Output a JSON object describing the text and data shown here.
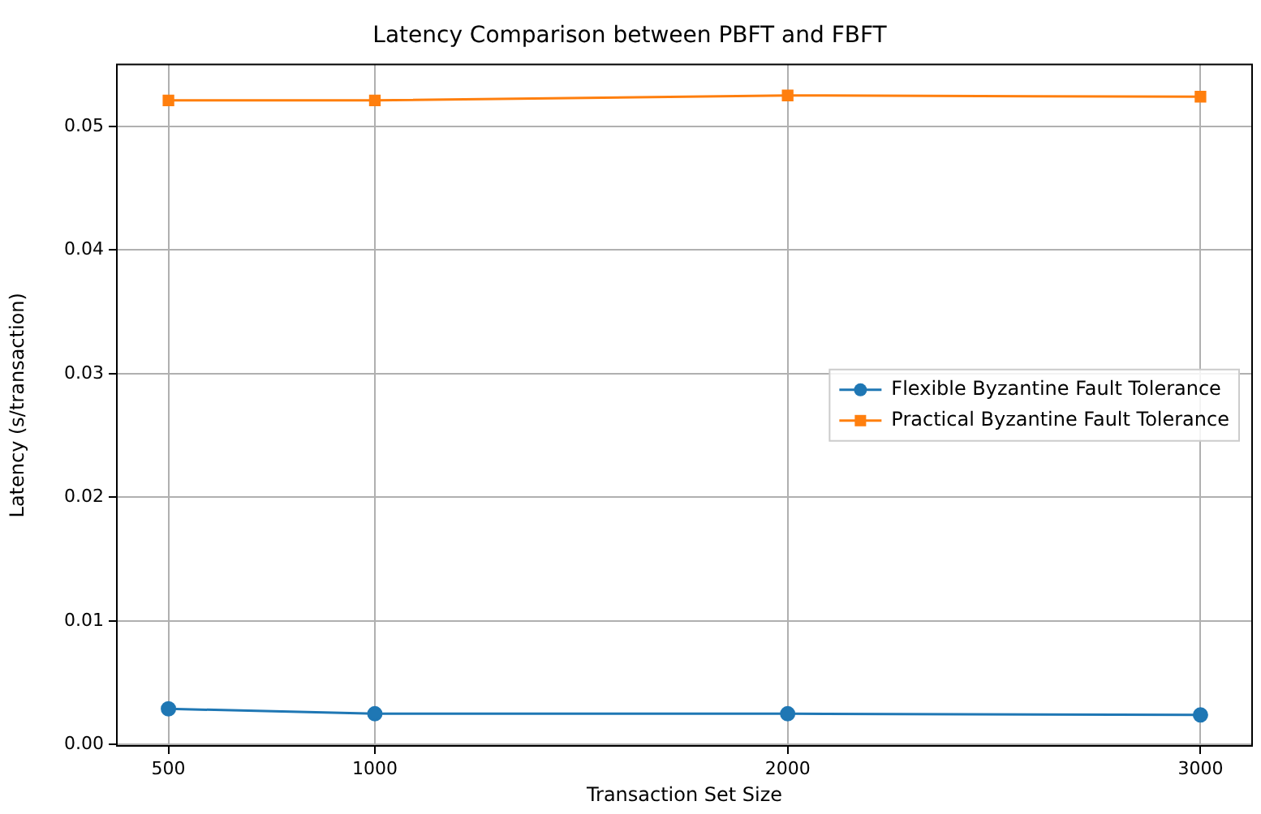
{
  "chart_data": {
    "type": "line",
    "title": "Latency Comparison between PBFT and FBFT",
    "xlabel": "Transaction Set Size",
    "ylabel": "Latency (s/transaction)",
    "x": [
      500,
      1000,
      2000,
      3000
    ],
    "series": [
      {
        "name": "Flexible Byzantine Fault Tolerance",
        "color": "#1f77b4",
        "marker": "circle",
        "values": [
          0.0029,
          0.0025,
          0.0025,
          0.0024
        ]
      },
      {
        "name": "Practical Byzantine Fault Tolerance",
        "color": "#ff7f0e",
        "marker": "square",
        "values": [
          0.0521,
          0.0521,
          0.0525,
          0.0524
        ]
      }
    ],
    "xlim": [
      375,
      3125
    ],
    "xticks": [
      500,
      1000,
      2000,
      3000
    ],
    "ylim": [
      -0.0001,
      0.055
    ],
    "yticks": [
      {
        "value": 0,
        "label": "0.00"
      },
      {
        "value": 0.01,
        "label": "0.01"
      },
      {
        "value": 0.02,
        "label": "0.02"
      },
      {
        "value": 0.03,
        "label": "0.03"
      },
      {
        "value": 0.04,
        "label": "0.04"
      },
      {
        "value": 0.05,
        "label": "0.05"
      }
    ],
    "grid": true,
    "legend": "right",
    "line_style": "solid"
  }
}
